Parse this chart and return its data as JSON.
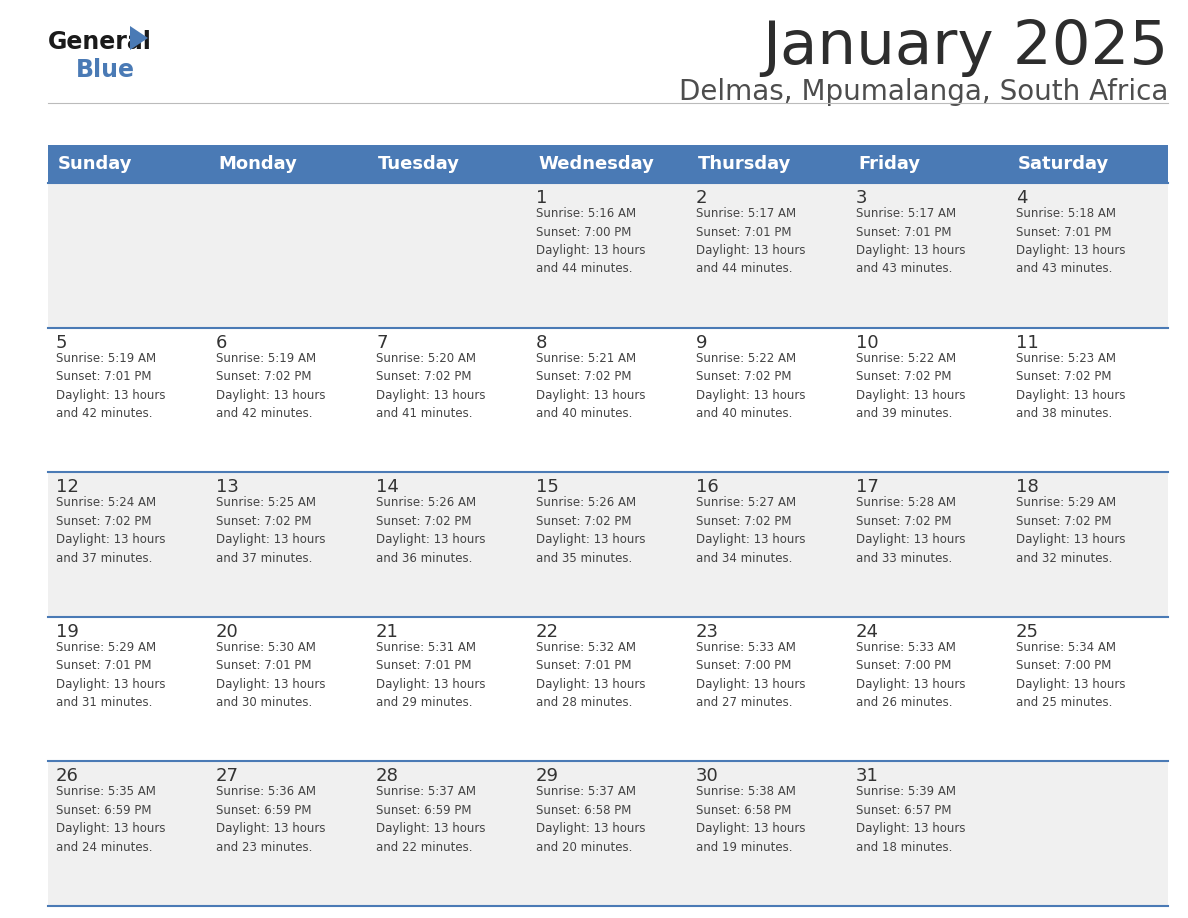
{
  "title": "January 2025",
  "subtitle": "Delmas, Mpumalanga, South Africa",
  "title_color": "#2d2d2d",
  "subtitle_color": "#4d4d4d",
  "header_bg_color": "#4a7ab5",
  "header_text_color": "#ffffff",
  "row_bg_colors": [
    "#f0f0f0",
    "#ffffff"
  ],
  "cell_border_color": "#4a7ab5",
  "day_number_color": "#333333",
  "cell_text_color": "#444444",
  "days_of_week": [
    "Sunday",
    "Monday",
    "Tuesday",
    "Wednesday",
    "Thursday",
    "Friday",
    "Saturday"
  ],
  "logo_general_color": "#1a1a1a",
  "logo_blue_color": "#4a7ab5",
  "logo_triangle_color": "#4a7ab5",
  "weeks": [
    {
      "days": [
        {
          "day": null,
          "info": null
        },
        {
          "day": null,
          "info": null
        },
        {
          "day": null,
          "info": null
        },
        {
          "day": 1,
          "info": "Sunrise: 5:16 AM\nSunset: 7:00 PM\nDaylight: 13 hours\nand 44 minutes."
        },
        {
          "day": 2,
          "info": "Sunrise: 5:17 AM\nSunset: 7:01 PM\nDaylight: 13 hours\nand 44 minutes."
        },
        {
          "day": 3,
          "info": "Sunrise: 5:17 AM\nSunset: 7:01 PM\nDaylight: 13 hours\nand 43 minutes."
        },
        {
          "day": 4,
          "info": "Sunrise: 5:18 AM\nSunset: 7:01 PM\nDaylight: 13 hours\nand 43 minutes."
        }
      ]
    },
    {
      "days": [
        {
          "day": 5,
          "info": "Sunrise: 5:19 AM\nSunset: 7:01 PM\nDaylight: 13 hours\nand 42 minutes."
        },
        {
          "day": 6,
          "info": "Sunrise: 5:19 AM\nSunset: 7:02 PM\nDaylight: 13 hours\nand 42 minutes."
        },
        {
          "day": 7,
          "info": "Sunrise: 5:20 AM\nSunset: 7:02 PM\nDaylight: 13 hours\nand 41 minutes."
        },
        {
          "day": 8,
          "info": "Sunrise: 5:21 AM\nSunset: 7:02 PM\nDaylight: 13 hours\nand 40 minutes."
        },
        {
          "day": 9,
          "info": "Sunrise: 5:22 AM\nSunset: 7:02 PM\nDaylight: 13 hours\nand 40 minutes."
        },
        {
          "day": 10,
          "info": "Sunrise: 5:22 AM\nSunset: 7:02 PM\nDaylight: 13 hours\nand 39 minutes."
        },
        {
          "day": 11,
          "info": "Sunrise: 5:23 AM\nSunset: 7:02 PM\nDaylight: 13 hours\nand 38 minutes."
        }
      ]
    },
    {
      "days": [
        {
          "day": 12,
          "info": "Sunrise: 5:24 AM\nSunset: 7:02 PM\nDaylight: 13 hours\nand 37 minutes."
        },
        {
          "day": 13,
          "info": "Sunrise: 5:25 AM\nSunset: 7:02 PM\nDaylight: 13 hours\nand 37 minutes."
        },
        {
          "day": 14,
          "info": "Sunrise: 5:26 AM\nSunset: 7:02 PM\nDaylight: 13 hours\nand 36 minutes."
        },
        {
          "day": 15,
          "info": "Sunrise: 5:26 AM\nSunset: 7:02 PM\nDaylight: 13 hours\nand 35 minutes."
        },
        {
          "day": 16,
          "info": "Sunrise: 5:27 AM\nSunset: 7:02 PM\nDaylight: 13 hours\nand 34 minutes."
        },
        {
          "day": 17,
          "info": "Sunrise: 5:28 AM\nSunset: 7:02 PM\nDaylight: 13 hours\nand 33 minutes."
        },
        {
          "day": 18,
          "info": "Sunrise: 5:29 AM\nSunset: 7:02 PM\nDaylight: 13 hours\nand 32 minutes."
        }
      ]
    },
    {
      "days": [
        {
          "day": 19,
          "info": "Sunrise: 5:29 AM\nSunset: 7:01 PM\nDaylight: 13 hours\nand 31 minutes."
        },
        {
          "day": 20,
          "info": "Sunrise: 5:30 AM\nSunset: 7:01 PM\nDaylight: 13 hours\nand 30 minutes."
        },
        {
          "day": 21,
          "info": "Sunrise: 5:31 AM\nSunset: 7:01 PM\nDaylight: 13 hours\nand 29 minutes."
        },
        {
          "day": 22,
          "info": "Sunrise: 5:32 AM\nSunset: 7:01 PM\nDaylight: 13 hours\nand 28 minutes."
        },
        {
          "day": 23,
          "info": "Sunrise: 5:33 AM\nSunset: 7:00 PM\nDaylight: 13 hours\nand 27 minutes."
        },
        {
          "day": 24,
          "info": "Sunrise: 5:33 AM\nSunset: 7:00 PM\nDaylight: 13 hours\nand 26 minutes."
        },
        {
          "day": 25,
          "info": "Sunrise: 5:34 AM\nSunset: 7:00 PM\nDaylight: 13 hours\nand 25 minutes."
        }
      ]
    },
    {
      "days": [
        {
          "day": 26,
          "info": "Sunrise: 5:35 AM\nSunset: 6:59 PM\nDaylight: 13 hours\nand 24 minutes."
        },
        {
          "day": 27,
          "info": "Sunrise: 5:36 AM\nSunset: 6:59 PM\nDaylight: 13 hours\nand 23 minutes."
        },
        {
          "day": 28,
          "info": "Sunrise: 5:37 AM\nSunset: 6:59 PM\nDaylight: 13 hours\nand 22 minutes."
        },
        {
          "day": 29,
          "info": "Sunrise: 5:37 AM\nSunset: 6:58 PM\nDaylight: 13 hours\nand 20 minutes."
        },
        {
          "day": 30,
          "info": "Sunrise: 5:38 AM\nSunset: 6:58 PM\nDaylight: 13 hours\nand 19 minutes."
        },
        {
          "day": 31,
          "info": "Sunrise: 5:39 AM\nSunset: 6:57 PM\nDaylight: 13 hours\nand 18 minutes."
        },
        {
          "day": null,
          "info": null
        }
      ]
    }
  ]
}
